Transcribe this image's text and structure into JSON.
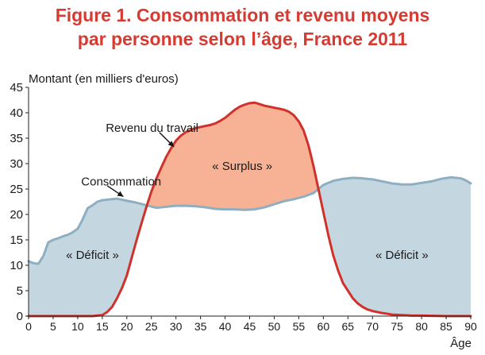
{
  "title_line1": "Figure 1. Consommation et revenu moyens",
  "title_line2": "par personne selon l’âge, France 2011",
  "colors": {
    "title": "#d63a31",
    "income_line": "#d0322b",
    "consumption_line": "#8eafc2",
    "deficit_fill": "#c4d6e0",
    "surplus_fill": "#f7b295"
  },
  "chart_data": {
    "type": "area",
    "title": "Figure 1. Consommation et revenu moyens par personne selon l’âge, France 2011",
    "ylabel": "Montant (en milliers d'euros)",
    "xlabel": "Âge",
    "xlim": [
      0,
      90
    ],
    "ylim": [
      0,
      45
    ],
    "x_ticks": [
      0,
      5,
      10,
      15,
      20,
      25,
      30,
      35,
      40,
      45,
      50,
      55,
      60,
      65,
      70,
      75,
      80,
      85,
      90
    ],
    "y_ticks": [
      0,
      5,
      10,
      15,
      20,
      25,
      30,
      35,
      40,
      45
    ],
    "grid": false,
    "series": [
      {
        "name": "Consommation",
        "x": [
          0,
          1,
          2,
          3,
          4,
          5,
          6,
          7,
          8,
          9,
          10,
          11,
          12,
          13,
          14,
          15,
          16,
          17,
          18,
          19,
          20,
          22,
          24,
          26,
          28,
          30,
          32,
          34,
          36,
          38,
          40,
          42,
          44,
          46,
          48,
          50,
          52,
          54,
          56,
          58,
          60,
          62,
          64,
          66,
          68,
          70,
          72,
          74,
          76,
          78,
          80,
          82,
          84,
          86,
          88,
          89,
          90
        ],
        "values": [
          10.8,
          10.4,
          10.3,
          11.8,
          14.5,
          15.0,
          15.3,
          15.7,
          16.0,
          16.5,
          17.2,
          19.0,
          21.2,
          21.8,
          22.5,
          22.8,
          22.9,
          23.0,
          23.1,
          22.9,
          22.7,
          22.3,
          21.8,
          21.3,
          21.5,
          21.7,
          21.7,
          21.6,
          21.4,
          21.1,
          21.0,
          21.0,
          20.9,
          21.0,
          21.4,
          22.0,
          22.6,
          23.0,
          23.5,
          24.2,
          25.8,
          26.6,
          27.0,
          27.2,
          27.1,
          26.9,
          26.5,
          26.1,
          25.9,
          25.9,
          26.2,
          26.5,
          27.0,
          27.3,
          27.1,
          26.7,
          26.1
        ]
      },
      {
        "name": "Revenu du travail",
        "x": [
          0,
          5,
          10,
          13,
          15,
          16,
          17,
          18,
          19,
          20,
          21,
          22,
          23,
          24,
          25,
          26,
          27,
          28,
          29,
          30,
          31,
          32,
          33,
          34,
          35,
          36,
          37,
          38,
          39,
          40,
          41,
          42,
          43,
          44,
          45,
          46,
          47,
          48,
          49,
          50,
          51,
          52,
          53,
          54,
          55,
          56,
          57,
          58,
          59,
          60,
          61,
          62,
          63,
          64,
          65,
          66,
          67,
          68,
          69,
          70,
          72,
          74,
          76,
          78,
          80,
          85,
          90
        ],
        "values": [
          0,
          0,
          0,
          0,
          0.2,
          0.8,
          1.8,
          3.5,
          5.5,
          8.0,
          11.5,
          15.0,
          18.3,
          21.5,
          24.5,
          27.0,
          29.2,
          31.3,
          33.0,
          34.5,
          35.5,
          36.2,
          36.6,
          37.0,
          37.2,
          37.4,
          37.6,
          37.9,
          38.4,
          39.0,
          39.8,
          40.6,
          41.2,
          41.6,
          41.9,
          42.0,
          41.7,
          41.4,
          41.2,
          41.0,
          40.8,
          40.6,
          40.2,
          39.5,
          38.3,
          36.5,
          33.5,
          29.5,
          25.0,
          20.5,
          16.0,
          12.0,
          9.0,
          6.5,
          5.0,
          3.5,
          2.5,
          1.8,
          1.3,
          1.0,
          0.6,
          0.3,
          0.2,
          0.1,
          0.1,
          0,
          0
        ]
      }
    ],
    "annotations": [
      {
        "text": "Revenu du travail",
        "x": 17,
        "y": 37,
        "arrow_to_x": 29,
        "arrow_to_y": 33
      },
      {
        "text": "Consommation",
        "x": 12,
        "y": 26.5,
        "arrow_to_x": 19,
        "arrow_to_y": 23.3
      },
      {
        "text": "« Surplus »",
        "x": 43.5,
        "y": 29.5
      },
      {
        "text": "« Déficit »",
        "x": 13,
        "y": 12
      },
      {
        "text": "« Déficit »",
        "x": 76,
        "y": 12
      }
    ]
  }
}
